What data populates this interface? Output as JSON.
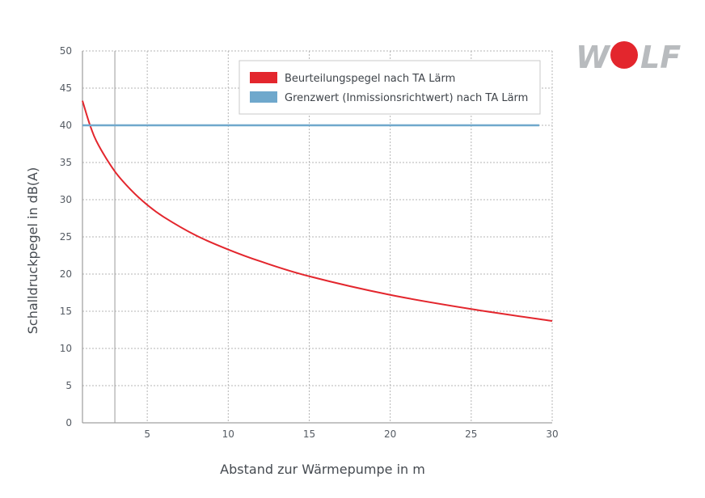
{
  "logo": {
    "text": "WOLF",
    "letter_color": "#b8bbbe",
    "dot_color": "#e3262d"
  },
  "chart_data": {
    "type": "line",
    "title": "",
    "xlabel": "Abstand zur Wärmepumpe in m",
    "ylabel": "Schalldruckpegel in dB(A)",
    "xlim": [
      1,
      30
    ],
    "ylim": [
      0,
      50
    ],
    "x_ticks": [
      5,
      10,
      15,
      20,
      25,
      30
    ],
    "y_ticks": [
      0,
      5,
      10,
      15,
      20,
      25,
      30,
      35,
      40,
      45,
      50
    ],
    "grid": true,
    "grid_style": "dotted",
    "marker_line_x": 3,
    "legend_position": "top-right",
    "series": [
      {
        "name": "Beurteilungspegel nach TA Lärm",
        "color": "#e3262d",
        "x": [
          1,
          1.5,
          2,
          3,
          4,
          5,
          6,
          8,
          10,
          12,
          15,
          20,
          25,
          30
        ],
        "y": [
          43.3,
          39.8,
          37.3,
          33.8,
          31.3,
          29.3,
          27.7,
          25.2,
          23.3,
          21.7,
          19.7,
          17.2,
          15.3,
          13.7
        ]
      },
      {
        "name": "Grenzwert (Inmissionsrichtwert) nach TA Lärm",
        "color": "#6fa8cc",
        "x": [
          1,
          29.2
        ],
        "y": [
          40,
          40
        ]
      }
    ]
  }
}
